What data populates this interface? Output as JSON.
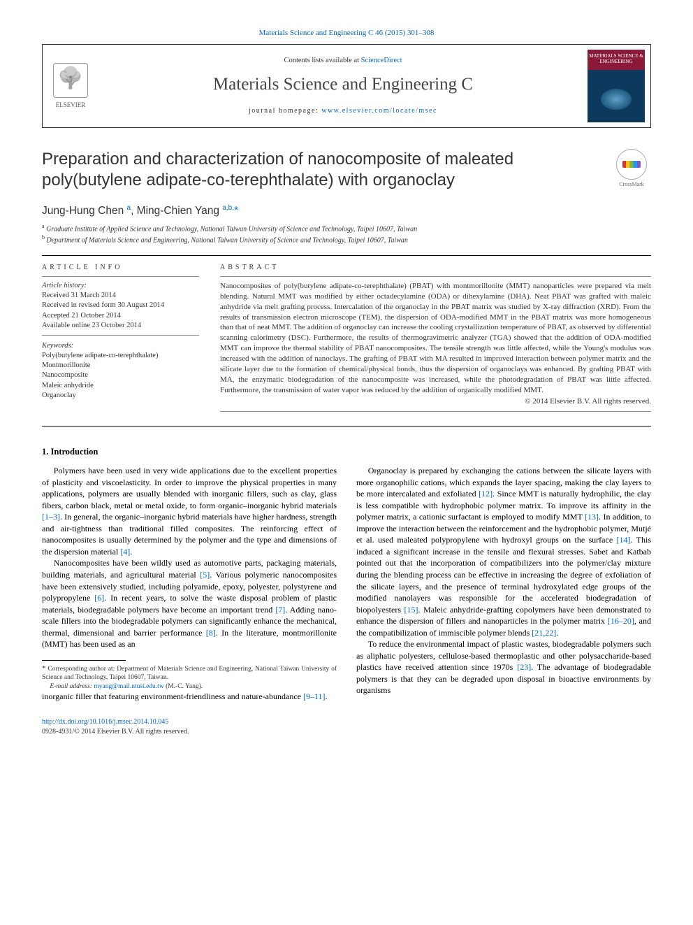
{
  "top_citation": "Materials Science and Engineering C 46 (2015) 301–308",
  "header": {
    "elsevier_label": "ELSEVIER",
    "contents_prefix": "Contents lists available at ",
    "contents_link": "ScienceDirect",
    "journal_title": "Materials Science and Engineering C",
    "homepage_prefix": "journal homepage: ",
    "homepage_link": "www.elsevier.com/locate/msec",
    "cover_text": "MATERIALS\nSCIENCE &\nENGINEERING"
  },
  "crossmark_label": "CrossMark",
  "article": {
    "title": "Preparation and characterization of nanocomposite of maleated poly(butylene adipate-co-terephthalate) with organoclay",
    "authors_html": "Jung-Hung Chen <sup>a</sup>, Ming-Chien Yang <sup>a,b,</sup><span class='star'>*</span>",
    "affiliations": [
      {
        "sup": "a",
        "text": "Graduate Institute of Applied Science and Technology, National Taiwan University of Science and Technology, Taipei 10607, Taiwan"
      },
      {
        "sup": "b",
        "text": "Department of Materials Science and Engineering, National Taiwan University of Science and Technology, Taipei 10607, Taiwan"
      }
    ]
  },
  "info": {
    "heading": "ARTICLE INFO",
    "history_label": "Article history:",
    "history": [
      "Received 31 March 2014",
      "Received in revised form 30 August 2014",
      "Accepted 21 October 2014",
      "Available online 23 October 2014"
    ],
    "keywords_label": "Keywords:",
    "keywords": [
      "Poly(butylene adipate-co-terephthalate)",
      "Montmorillonite",
      "Nanocomposite",
      "Maleic anhydride",
      "Organoclay"
    ]
  },
  "abstract": {
    "heading": "ABSTRACT",
    "text": "Nanocomposites of poly(butylene adipate-co-terephthalate) (PBAT) with montmorillonite (MMT) nanoparticles were prepared via melt blending. Natural MMT was modified by either octadecylamine (ODA) or dihexylamine (DHA). Neat PBAT was grafted with maleic anhydride via melt grafting process. Intercalation of the organoclay in the PBAT matrix was studied by X-ray diffraction (XRD). From the results of transmission electron microscope (TEM), the dispersion of ODA-modified MMT in the PBAT matrix was more homogeneous than that of neat MMT. The addition of organoclay can increase the cooling crystallization temperature of PBAT, as observed by differential scanning calorimetry (DSC). Furthermore, the results of thermogravimetric analyzer (TGA) showed that the addition of ODA-modified MMT can improve the thermal stability of PBAT nanocomposites. The tensile strength was little affected, while the Young's modulus was increased with the addition of nanoclays. The grafting of PBAT with MA resulted in improved interaction between polymer matrix and the silicate layer due to the formation of chemical/physical bonds, thus the dispersion of organoclays was enhanced. By grafting PBAT with MA, the enzymatic biodegradation of the nanocomposite was increased, while the photodegradation of PBAT was little affected. Furthermore, the transmission of water vapor was reduced by the addition of organically modified MMT.",
    "copyright": "© 2014 Elsevier B.V. All rights reserved."
  },
  "section1_title": "1. Introduction",
  "body": {
    "p1": "Polymers have been used in very wide applications due to the excellent properties of plasticity and viscoelasticity. In order to improve the physical properties in many applications, polymers are usually blended with inorganic fillers, such as clay, glass fibers, carbon black, metal or metal oxide, to form organic–inorganic hybrid materials ",
    "r1": "[1–3]",
    "p1b": ". In general, the organic–inorganic hybrid materials have higher hardness, strength and air-tightness than traditional filled composites. The reinforcing effect of nanocomposites is usually determined by the polymer and the type and dimensions of the dispersion material ",
    "r2": "[4]",
    "p1c": ".",
    "p2": "Nanocomposites have been wildly used as automotive parts, packaging materials, building materials, and agricultural material ",
    "r3": "[5]",
    "p2b": ". Various polymeric nanocomposites have been extensively studied, including polyamide, epoxy, polyester, polystyrene and polypropylene ",
    "r4": "[6]",
    "p2c": ". In recent years, to solve the waste disposal problem of plastic materials, biodegradable polymers have become an important trend ",
    "r5": "[7]",
    "p2d": ". Adding nano-scale fillers into the biodegradable polymers can significantly enhance the mechanical, thermal, dimensional and barrier performance ",
    "r6": "[8]",
    "p2e": ". In the literature, montmorillonite (MMT) has been used as an",
    "p3": "inorganic filler that featuring environment-friendliness and nature-abundance ",
    "r7": "[9–11]",
    "p3b": ".",
    "p4": "Organoclay is prepared by exchanging the cations between the silicate layers with more organophilic cations, which expands the layer spacing, making the clay layers to be more intercalated and exfoliated ",
    "r8": "[12]",
    "p4b": ". Since MMT is naturally hydrophilic, the clay is less compatible with hydrophobic polymer matrix. To improve its affinity in the polymer matrix, a cationic surfactant is employed to modify MMT ",
    "r9": "[13]",
    "p4c": ". In addition, to improve the interaction between the reinforcement and the hydrophobic polymer, Mutjé et al. used maleated polypropylene with hydroxyl groups on the surface ",
    "r10": "[14]",
    "p4d": ". This induced a significant increase in the tensile and flexural stresses. Sabet and Katbab pointed out that the incorporation of compatibilizers into the polymer/clay mixture during the blending process can be effective in increasing the degree of exfoliation of the silicate layers, and the presence of terminal hydroxylated edge groups of the modified nanolayers was responsible for the accelerated biodegradation of biopolyesters ",
    "r11": "[15]",
    "p4e": ". Maleic anhydride-grafting copolymers have been demonstrated to enhance the dispersion of fillers and nanoparticles in the polymer matrix ",
    "r12": "[16–20]",
    "p4f": ", and the compatibilization of immiscible polymer blends ",
    "r13": "[21,22]",
    "p4g": ".",
    "p5": "To reduce the environmental impact of plastic wastes, biodegradable polymers such as aliphatic polyesters, cellulose-based thermoplastic and other polysaccharide-based plastics have received attention since 1970s ",
    "r14": "[23]",
    "p5b": ". The advantage of biodegradable polymers is that they can be degraded upon disposal in bioactive environments by organisms"
  },
  "footnote": {
    "corr": "Corresponding author at: Department of Materials Science and Engineering, National Taiwan University of Science and Technology, Taipei 10607, Taiwan.",
    "email_label": "E-mail address: ",
    "email": "myang@mail.ntust.edu.tw",
    "email_suffix": " (M.-C. Yang)."
  },
  "footer": {
    "doi": "http://dx.doi.org/10.1016/j.msec.2014.10.045",
    "issn_line": "0928-4931/© 2014 Elsevier B.V. All rights reserved."
  },
  "colors": {
    "link": "#0066cc",
    "text": "#333333",
    "rule": "#000000"
  }
}
